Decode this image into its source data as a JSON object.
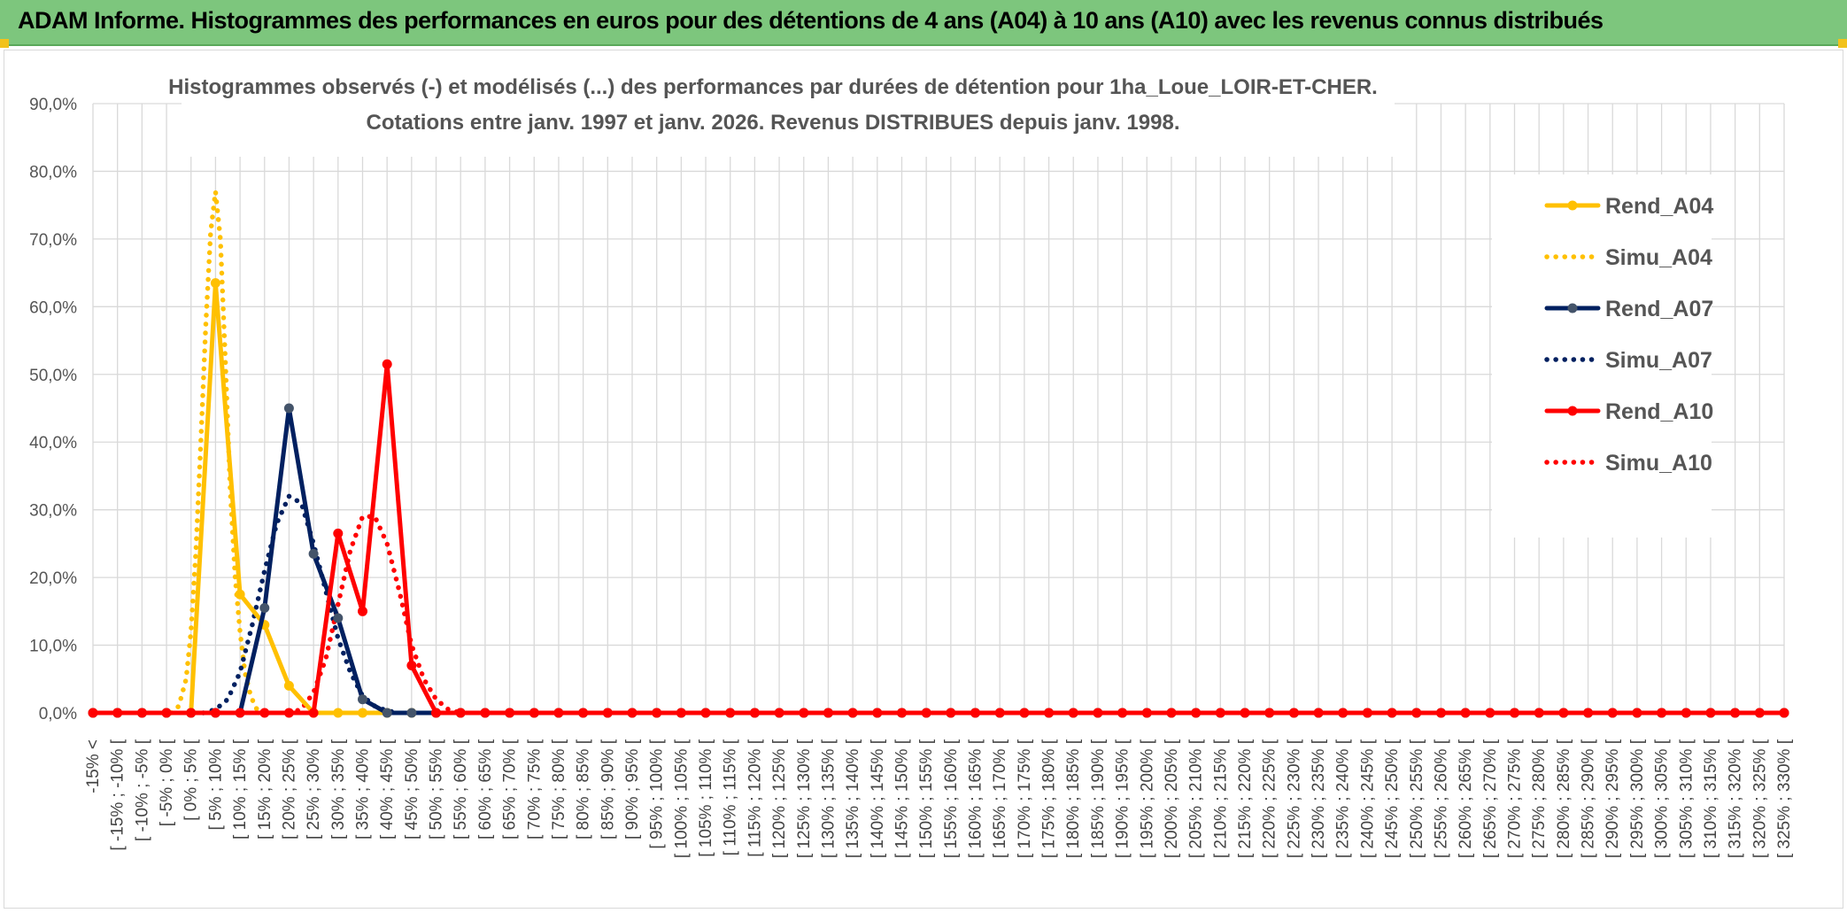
{
  "header": {
    "title": "ADAM Informe. Histogrammes des performances en euros pour des détentions de 4 ans (A04) à 10 ans (A10) avec les revenus connus distribués"
  },
  "chart_data": {
    "type": "line",
    "title": "Histogrammes observés (-) et modélisés (...) des performances par durées de détention pour 1ha_Loue_LOIR-ET-CHER.",
    "subtitle": "Cotations entre janv. 1997 et janv. 2026. Revenus DISTRIBUES depuis janv. 1998.",
    "xlabel": "",
    "ylabel": "",
    "ylim": [
      0,
      90
    ],
    "y_ticks": [
      "0,0%",
      "10,0%",
      "20,0%",
      "30,0%",
      "40,0%",
      "50,0%",
      "60,0%",
      "70,0%",
      "80,0%",
      "90,0%"
    ],
    "grid": true,
    "legend_position": "right",
    "categories": [
      "-15% <",
      "[ -15% ; -10% [",
      "[ -10% ; -5% [",
      "[ -5% ; 0% [",
      "[ 0% ; 5% [",
      "[ 5% ; 10% [",
      "[ 10% ; 15% [",
      "[ 15% ; 20% [",
      "[ 20% ; 25% [",
      "[ 25% ; 30% [",
      "[ 30% ; 35% [",
      "[ 35% ; 40% [",
      "[ 40% ; 45% [",
      "[ 45% ; 50% [",
      "[ 50% ; 55% [",
      "[ 55% ; 60% [",
      "[ 60% ; 65% [",
      "[ 65% ; 70% [",
      "[ 70% ; 75% [",
      "[ 75% ; 80% [",
      "[ 80% ; 85% [",
      "[ 85% ; 90% [",
      "[ 90% ; 95% [",
      "[ 95% ; 100% [",
      "[ 100% ; 105% [",
      "[ 105% ; 110% [",
      "[ 110% ; 115% [",
      "[ 115% ; 120% [",
      "[ 120% ; 125% [",
      "[ 125% ; 130% [",
      "[ 130% ; 135% [",
      "[ 135% ; 140% [",
      "[ 140% ; 145% [",
      "[ 145% ; 150% [",
      "[ 150% ; 155% [",
      "[ 155% ; 160% [",
      "[ 160% ; 165% [",
      "[ 165% ; 170% [",
      "[ 170% ; 175% [",
      "[ 175% ; 180% [",
      "[ 180% ; 185% [",
      "[ 185% ; 190% [",
      "[ 190% ; 195% [",
      "[ 195% ; 200% [",
      "[ 200% ; 205% [",
      "[ 205% ; 210% [",
      "[ 210% ; 215% [",
      "[ 215% ; 220% [",
      "[ 220% ; 225% [",
      "[ 225% ; 230% [",
      "[ 230% ; 235% [",
      "[ 235% ; 240% [",
      "[ 240% ; 245% [",
      "[ 245% ; 250% [",
      "[ 250% ; 255% [",
      "[ 255% ; 260% [",
      "[ 260% ; 265% [",
      "[ 265% ; 270% [",
      "[ 270% ; 275% [",
      "[ 275% ; 280% [",
      "[ 280% ; 285% [",
      "[ 285% ; 290% [",
      "[ 290% ; 295% [",
      "[ 295% ; 300% [",
      "[ 300% ; 305% [",
      "[ 305% ; 310% [",
      "[ 310% ; 315% [",
      "[ 315% ; 320% [",
      "[ 320% ; 325% [",
      "[ 325% ; 330% ["
    ],
    "series": [
      {
        "name": "Rend_A04",
        "color": "#ffc000",
        "style": "solid",
        "markers": true,
        "values": [
          0,
          0,
          0,
          0,
          0,
          63.5,
          17.5,
          13,
          4,
          0,
          0,
          0,
          0,
          0,
          0,
          0,
          0,
          0,
          0,
          0,
          0,
          0,
          0,
          0,
          0,
          0,
          0,
          0,
          0,
          0,
          0,
          0,
          0,
          0,
          0,
          0,
          0,
          0,
          0,
          0,
          0,
          0,
          0,
          0,
          0,
          0,
          0,
          0,
          0,
          0,
          0,
          0,
          0,
          0,
          0,
          0,
          0,
          0,
          0,
          0,
          0,
          0,
          0,
          0,
          0,
          0,
          0,
          0,
          0,
          0
        ]
      },
      {
        "name": "Simu_A04",
        "color": "#ffc000",
        "style": "dotted",
        "markers": false,
        "x": [
          3.2,
          3.5,
          3.8,
          4.0,
          4.2,
          4.4,
          4.6,
          4.8,
          5.0,
          5.2,
          5.4,
          5.6,
          5.8,
          6.0,
          6.2,
          6.4,
          6.6,
          6.8,
          7.0
        ],
        "values": [
          0,
          1,
          5,
          12,
          24,
          40,
          57,
          71,
          77,
          70,
          52,
          33,
          20,
          12,
          6,
          3,
          1,
          0,
          0
        ]
      },
      {
        "name": "Rend_A07",
        "color": "#002060",
        "style": "solid",
        "markers": true,
        "values": [
          0,
          0,
          0,
          0,
          0,
          0,
          0,
          15.5,
          45,
          23.5,
          14,
          2,
          0,
          0,
          0,
          0,
          0,
          0,
          0,
          0,
          0,
          0,
          0,
          0,
          0,
          0,
          0,
          0,
          0,
          0,
          0,
          0,
          0,
          0,
          0,
          0,
          0,
          0,
          0,
          0,
          0,
          0,
          0,
          0,
          0,
          0,
          0,
          0,
          0,
          0,
          0,
          0,
          0,
          0,
          0,
          0,
          0,
          0,
          0,
          0,
          0,
          0,
          0,
          0,
          0,
          0,
          0,
          0,
          0,
          0
        ]
      },
      {
        "name": "Simu_A07",
        "color": "#002060",
        "style": "dotted",
        "markers": false,
        "x": [
          4.5,
          5,
          5.5,
          6,
          6.5,
          7,
          7.5,
          8,
          8.5,
          9,
          9.5,
          10,
          10.5,
          11,
          11.5,
          12,
          12.5
        ],
        "values": [
          0,
          0.5,
          2,
          6,
          13,
          21,
          28,
          32,
          31,
          25,
          18,
          11,
          6,
          2.5,
          1,
          0.3,
          0
        ]
      },
      {
        "name": "Rend_A10",
        "color": "#ff0000",
        "style": "solid",
        "markers": true,
        "values": [
          0,
          0,
          0,
          0,
          0,
          0,
          0,
          0,
          0,
          0,
          26.5,
          15,
          51.5,
          7,
          0,
          0,
          0,
          0,
          0,
          0,
          0,
          0,
          0,
          0,
          0,
          0,
          0,
          0,
          0,
          0,
          0,
          0,
          0,
          0,
          0,
          0,
          0,
          0,
          0,
          0,
          0,
          0,
          0,
          0,
          0,
          0,
          0,
          0,
          0,
          0,
          0,
          0,
          0,
          0,
          0,
          0,
          0,
          0,
          0,
          0,
          0,
          0,
          0,
          0,
          0,
          0,
          0,
          0,
          0,
          0
        ]
      },
      {
        "name": "Simu_A10",
        "color": "#ff0000",
        "style": "dotted",
        "markers": false,
        "x": [
          8,
          8.5,
          9,
          9.5,
          10,
          10.5,
          11,
          11.5,
          12,
          12.5,
          13,
          13.5,
          14,
          14.5,
          15
        ],
        "values": [
          0,
          0.5,
          3,
          8,
          16,
          24,
          29,
          29,
          25,
          18,
          10,
          5,
          2,
          0.5,
          0
        ]
      }
    ]
  }
}
